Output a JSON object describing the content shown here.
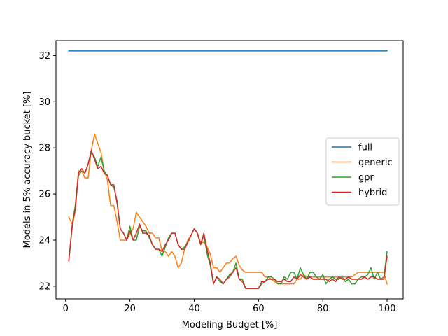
{
  "chart_data": {
    "type": "line",
    "xlabel": "Modeling Budget [%]",
    "ylabel": "Models in 5% accuracy bucket [%]",
    "xlim": [
      -3,
      105
    ],
    "ylim": [
      21.45,
      32.65
    ],
    "xticks": [
      0,
      20,
      40,
      60,
      80,
      100
    ],
    "yticks": [
      22,
      24,
      26,
      28,
      30,
      32
    ],
    "grid": false,
    "legend_position": "right",
    "series": [
      {
        "name": "full",
        "color": "#1f77b4",
        "x": [
          1,
          100
        ],
        "y": [
          32.2,
          32.2
        ]
      },
      {
        "name": "generic",
        "color": "#ff7f0e",
        "x": [
          1,
          2,
          3,
          4,
          5,
          6,
          7,
          8,
          9,
          10,
          11,
          12,
          13,
          14,
          15,
          16,
          17,
          18,
          19,
          20,
          21,
          22,
          23,
          24,
          25,
          26,
          27,
          28,
          29,
          30,
          31,
          32,
          33,
          34,
          35,
          36,
          37,
          38,
          39,
          40,
          41,
          42,
          43,
          44,
          45,
          46,
          47,
          48,
          49,
          50,
          51,
          52,
          53,
          54,
          55,
          56,
          57,
          58,
          59,
          60,
          61,
          62,
          63,
          64,
          65,
          66,
          67,
          68,
          69,
          70,
          71,
          72,
          73,
          74,
          75,
          76,
          77,
          78,
          79,
          80,
          81,
          82,
          83,
          84,
          85,
          86,
          87,
          88,
          89,
          90,
          91,
          92,
          93,
          94,
          95,
          96,
          97,
          98,
          99,
          100
        ],
        "y": [
          25.0,
          24.7,
          25.5,
          27.0,
          27.0,
          26.7,
          26.7,
          27.9,
          28.6,
          28.2,
          27.8,
          27.0,
          26.6,
          25.5,
          25.5,
          24.8,
          24.0,
          24.0,
          24.0,
          24.3,
          24.5,
          25.2,
          25.0,
          24.8,
          24.6,
          24.3,
          24.3,
          24.1,
          24.1,
          23.5,
          23.5,
          23.3,
          23.5,
          23.3,
          22.8,
          23.0,
          23.6,
          24.0,
          24.2,
          24.5,
          24.3,
          23.9,
          23.9,
          23.7,
          23.4,
          22.8,
          22.8,
          22.6,
          22.8,
          23.0,
          23.0,
          23.2,
          23.3,
          22.9,
          22.7,
          22.6,
          22.6,
          22.6,
          22.6,
          22.6,
          22.6,
          22.4,
          22.4,
          22.3,
          22.2,
          22.1,
          22.1,
          22.1,
          22.1,
          22.1,
          22.1,
          22.3,
          22.3,
          22.5,
          22.4,
          22.4,
          22.4,
          22.4,
          22.4,
          22.4,
          22.4,
          22.4,
          22.4,
          22.4,
          22.4,
          22.4,
          22.4,
          22.4,
          22.4,
          22.5,
          22.6,
          22.6,
          22.6,
          22.6,
          22.6,
          22.6,
          22.6,
          22.6,
          22.6,
          22.1
        ]
      },
      {
        "name": "gpr",
        "color": "#2ca02c",
        "x": [
          1,
          2,
          3,
          4,
          5,
          6,
          7,
          8,
          9,
          10,
          11,
          12,
          13,
          14,
          15,
          16,
          17,
          18,
          19,
          20,
          21,
          22,
          23,
          24,
          25,
          26,
          27,
          28,
          29,
          30,
          31,
          32,
          33,
          34,
          35,
          36,
          37,
          38,
          39,
          40,
          41,
          42,
          43,
          44,
          45,
          46,
          47,
          48,
          49,
          50,
          51,
          52,
          53,
          54,
          55,
          56,
          57,
          58,
          59,
          60,
          61,
          62,
          63,
          64,
          65,
          66,
          67,
          68,
          69,
          70,
          71,
          72,
          73,
          74,
          75,
          76,
          77,
          78,
          79,
          80,
          81,
          82,
          83,
          84,
          85,
          86,
          87,
          88,
          89,
          90,
          91,
          92,
          93,
          94,
          95,
          96,
          97,
          98,
          99,
          100
        ],
        "y": [
          23.1,
          24.5,
          25.5,
          26.8,
          27.0,
          26.9,
          27.3,
          27.8,
          27.6,
          27.2,
          27.6,
          27.0,
          26.8,
          26.4,
          26.3,
          25.7,
          24.5,
          24.3,
          24.0,
          24.6,
          24.0,
          24.0,
          24.6,
          24.4,
          24.4,
          24.1,
          23.8,
          23.6,
          23.6,
          23.3,
          23.7,
          24.1,
          24.3,
          24.3,
          23.8,
          23.6,
          23.7,
          23.9,
          24.2,
          24.5,
          24.3,
          23.8,
          24.2,
          23.4,
          22.9,
          22.1,
          22.4,
          22.2,
          22.1,
          22.3,
          22.5,
          22.6,
          23.0,
          22.3,
          22.3,
          21.9,
          21.9,
          21.9,
          21.9,
          21.9,
          22.1,
          22.2,
          22.4,
          22.4,
          22.3,
          22.1,
          22.1,
          22.4,
          22.3,
          22.6,
          22.6,
          22.3,
          22.8,
          22.5,
          22.3,
          22.6,
          22.6,
          22.4,
          22.3,
          22.5,
          22.1,
          22.3,
          22.4,
          22.3,
          22.3,
          22.4,
          22.2,
          22.3,
          22.1,
          22.1,
          22.3,
          22.4,
          22.4,
          22.5,
          22.8,
          22.3,
          22.6,
          22.3,
          22.4,
          23.5
        ]
      },
      {
        "name": "hybrid",
        "color": "#d62728",
        "x": [
          1,
          2,
          3,
          4,
          5,
          6,
          7,
          8,
          9,
          10,
          11,
          12,
          13,
          14,
          15,
          16,
          17,
          18,
          19,
          20,
          21,
          22,
          23,
          24,
          25,
          26,
          27,
          28,
          29,
          30,
          31,
          32,
          33,
          34,
          35,
          36,
          37,
          38,
          39,
          40,
          41,
          42,
          43,
          44,
          45,
          46,
          47,
          48,
          49,
          50,
          51,
          52,
          53,
          54,
          55,
          56,
          57,
          58,
          59,
          60,
          61,
          62,
          63,
          64,
          65,
          66,
          67,
          68,
          69,
          70,
          71,
          72,
          73,
          74,
          75,
          76,
          77,
          78,
          79,
          80,
          81,
          82,
          83,
          84,
          85,
          86,
          87,
          88,
          89,
          90,
          91,
          92,
          93,
          94,
          95,
          96,
          97,
          98,
          99,
          100
        ],
        "y": [
          23.1,
          24.6,
          25.3,
          26.9,
          27.1,
          26.9,
          27.3,
          27.9,
          27.5,
          27.1,
          27.2,
          26.9,
          26.8,
          26.4,
          26.4,
          25.6,
          24.5,
          24.3,
          24.0,
          24.4,
          24.0,
          24.3,
          24.7,
          24.3,
          24.3,
          24.2,
          23.8,
          23.6,
          23.6,
          23.5,
          23.8,
          24.0,
          24.3,
          24.3,
          23.8,
          23.6,
          23.6,
          23.9,
          24.2,
          24.5,
          24.3,
          23.8,
          24.3,
          23.6,
          23.0,
          22.1,
          22.4,
          22.3,
          22.1,
          22.3,
          22.4,
          22.6,
          22.8,
          22.3,
          22.2,
          21.9,
          21.9,
          21.9,
          21.9,
          21.9,
          22.2,
          22.2,
          22.3,
          22.3,
          22.3,
          22.2,
          22.2,
          22.3,
          22.2,
          22.2,
          22.4,
          22.3,
          22.5,
          22.4,
          22.3,
          22.4,
          22.3,
          22.3,
          22.3,
          22.3,
          22.3,
          22.2,
          22.3,
          22.2,
          22.4,
          22.3,
          22.3,
          22.4,
          22.3,
          22.3,
          22.3,
          22.3,
          22.4,
          22.3,
          22.4,
          22.4,
          22.3,
          22.3,
          22.3,
          23.3
        ]
      }
    ]
  }
}
